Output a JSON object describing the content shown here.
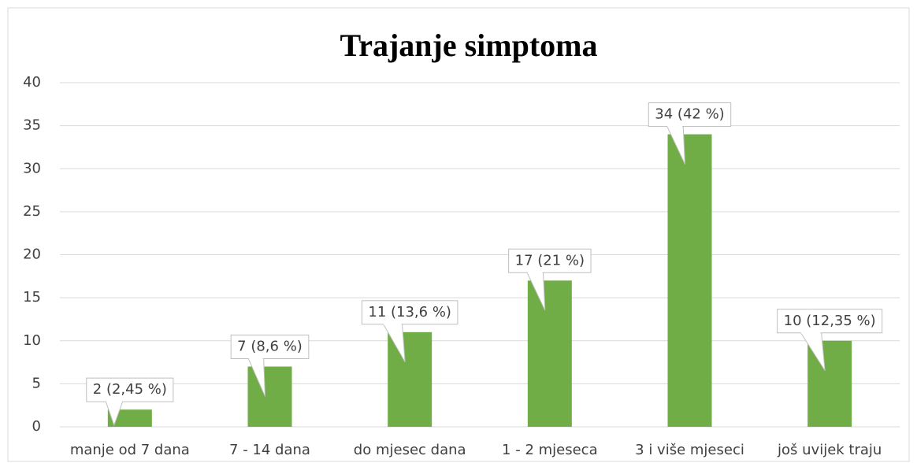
{
  "chart_data": {
    "type": "bar",
    "title": "Trajanje simptoma",
    "categories": [
      "manje od 7 dana",
      "7 - 14 dana",
      "do mjesec dana",
      "1 - 2 mjeseca",
      "3 i više mjeseci",
      "još uvijek traju"
    ],
    "values": [
      2,
      7,
      11,
      17,
      34,
      10
    ],
    "value_labels": [
      "2 (2,45 %)",
      "7 (8,6 %)",
      "11 (13,6 %)",
      "17 (21 %)",
      "34 (42 %)",
      "10 (12,35 %)"
    ],
    "color": "#70ad47",
    "ylim": [
      0,
      40
    ],
    "yticks": [
      0,
      5,
      10,
      15,
      20,
      25,
      30,
      35,
      40
    ],
    "grid": true
  }
}
